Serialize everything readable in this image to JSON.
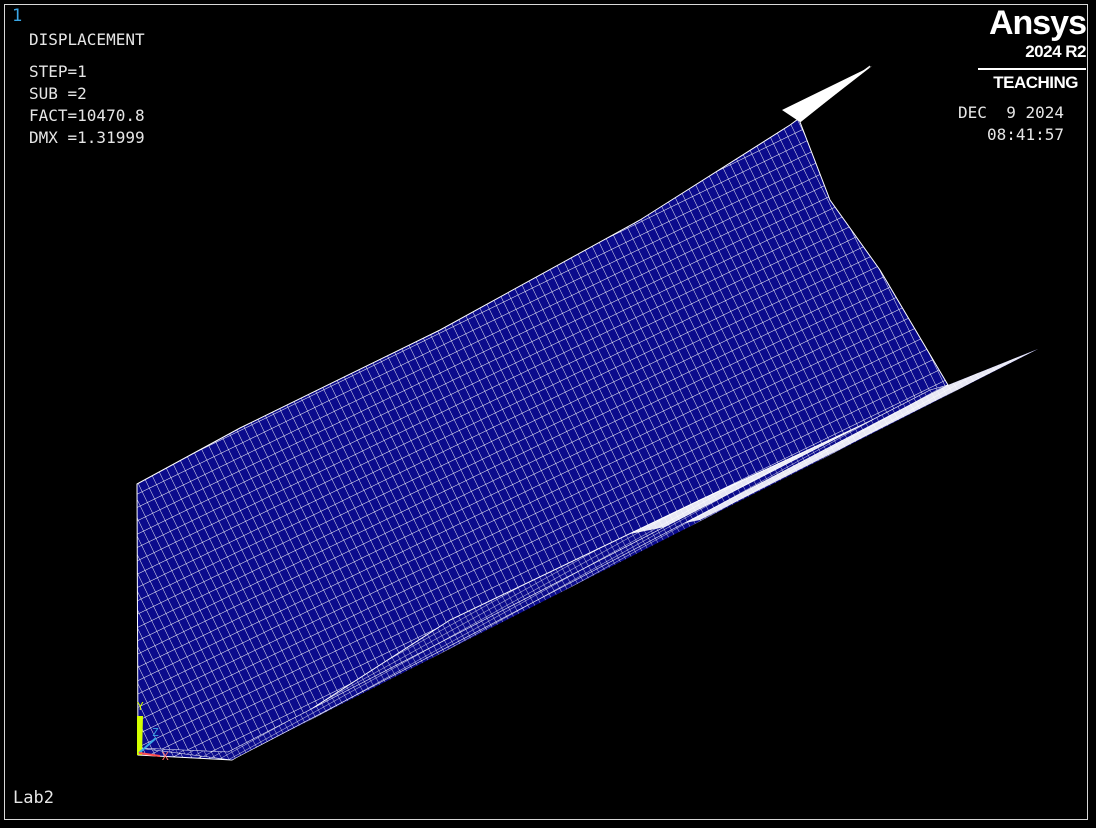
{
  "window_number": "1",
  "plot_title": "DISPLACEMENT",
  "results": {
    "step": "STEP=1",
    "sub": "SUB =2",
    "fact": "FACT=10470.8",
    "dmx": "DMX =1.31999"
  },
  "brand": {
    "name": "Ansys",
    "version": "2024 R2",
    "edition": "TEACHING"
  },
  "date": "DEC  9 2024",
  "time": "08:41:57",
  "triad": {
    "y_label": "Y",
    "z_label": "Z",
    "x_label": "X"
  },
  "jobname": "Lab2",
  "colors": {
    "background": "#000000",
    "element_fill": "#0b0b8c",
    "mesh_lines": "#ffffff",
    "window_number": "#3aa6e6",
    "text": "#e6e6e6",
    "triad_y": "#d4ff00",
    "triad_z": "#3aa6e6"
  }
}
